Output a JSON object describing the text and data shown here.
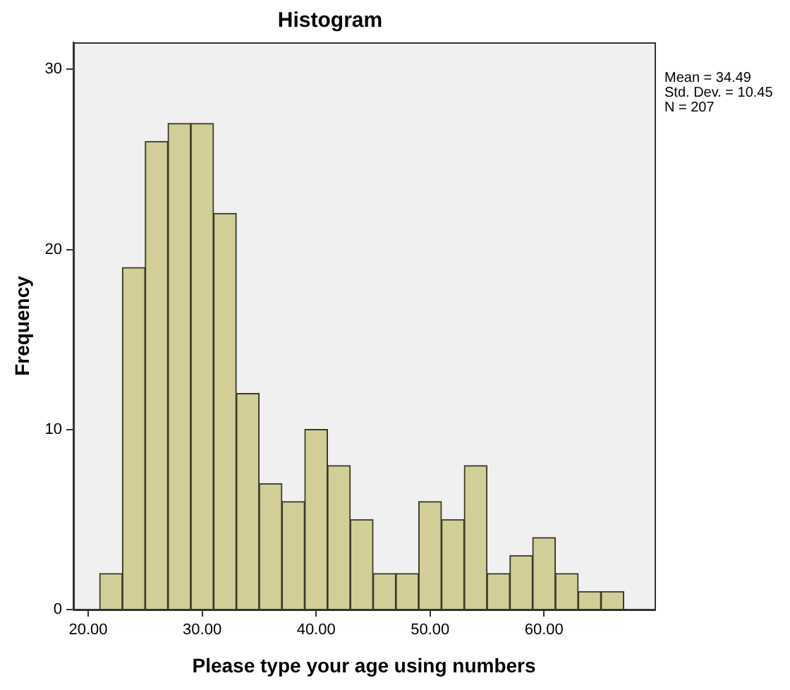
{
  "chart_data": {
    "type": "histogram",
    "title": "Histogram",
    "xlabel": "Please type your age using numbers",
    "ylabel": "Frequency",
    "bins": [
      21,
      23,
      25,
      27,
      29,
      31,
      33,
      35,
      37,
      39,
      41,
      43,
      45,
      47,
      49,
      51,
      53,
      55,
      57,
      59,
      61,
      63,
      65,
      67
    ],
    "values": [
      2,
      19,
      26,
      27,
      27,
      22,
      12,
      7,
      6,
      10,
      8,
      5,
      2,
      2,
      6,
      5,
      8,
      2,
      3,
      4,
      2,
      1,
      1
    ],
    "color": "#d3ce97",
    "xlim": [
      18.7,
      69.7
    ],
    "xticks": [
      {
        "value": 20,
        "label": "20.00"
      },
      {
        "value": 30,
        "label": "30.00"
      },
      {
        "value": 40,
        "label": "40.00"
      },
      {
        "value": 50,
        "label": "50.00"
      },
      {
        "value": 60,
        "label": "60.00"
      }
    ],
    "ylim": [
      0,
      31.5
    ],
    "yticks": [
      0,
      10,
      20,
      30
    ],
    "grid": false,
    "legend": false,
    "annotations": [
      "Mean = 34.49",
      "Std. Dev. = 10.45",
      "N = 207"
    ]
  }
}
